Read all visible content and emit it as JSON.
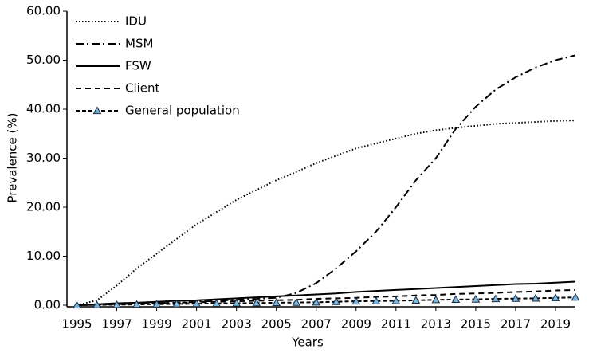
{
  "chart_data": {
    "type": "line",
    "x_label": "Years",
    "y_label": "Prevalence (%)",
    "x": [
      1995,
      1996,
      1997,
      1998,
      1999,
      2000,
      2001,
      2002,
      2003,
      2004,
      2005,
      2006,
      2007,
      2008,
      2009,
      2010,
      2011,
      2012,
      2013,
      2014,
      2015,
      2016,
      2017,
      2018,
      2019,
      2020
    ],
    "series": [
      {
        "name": "IDU",
        "color": "#000000",
        "dash": "1.5 2.5",
        "values": [
          0,
          1,
          4,
          7.5,
          10.5,
          13.5,
          16.5,
          19,
          21.5,
          23.5,
          25.5,
          27.2,
          29,
          30.5,
          32,
          33,
          34,
          35,
          35.7,
          36.2,
          36.6,
          37,
          37.2,
          37.4,
          37.6,
          37.7
        ]
      },
      {
        "name": "MSM",
        "color": "#000000",
        "dash": "10 4 2 4",
        "values": [
          0,
          0.1,
          0.2,
          0.3,
          0.4,
          0.5,
          0.7,
          0.9,
          1.1,
          1.3,
          1.5,
          2.5,
          4.5,
          7.5,
          11,
          15,
          20,
          25.5,
          30,
          36,
          40.5,
          44,
          46.5,
          48.5,
          50,
          51
        ]
      },
      {
        "name": "FSW",
        "color": "#000000",
        "dash": "none",
        "values": [
          0,
          0.2,
          0.4,
          0.5,
          0.7,
          0.9,
          1.0,
          1.2,
          1.4,
          1.6,
          1.8,
          2.0,
          2.2,
          2.4,
          2.7,
          2.9,
          3.1,
          3.3,
          3.5,
          3.7,
          3.9,
          4.1,
          4.3,
          4.4,
          4.6,
          4.8
        ]
      },
      {
        "name": "Client",
        "color": "#000000",
        "dash": "7 5",
        "values": [
          0,
          0.1,
          0.2,
          0.3,
          0.4,
          0.5,
          0.6,
          0.7,
          0.8,
          0.9,
          1.0,
          1.1,
          1.3,
          1.4,
          1.5,
          1.7,
          1.8,
          2.0,
          2.1,
          2.3,
          2.4,
          2.5,
          2.7,
          2.8,
          3.0,
          3.1
        ]
      },
      {
        "name": "General population",
        "color": "#000000",
        "dash": "5 3",
        "marker": "triangle",
        "marker_color": "#7ab8e0",
        "values": [
          0,
          0.05,
          0.1,
          0.15,
          0.2,
          0.25,
          0.3,
          0.35,
          0.4,
          0.45,
          0.5,
          0.55,
          0.6,
          0.7,
          0.8,
          0.85,
          0.9,
          1.0,
          1.1,
          1.15,
          1.2,
          1.3,
          1.35,
          1.4,
          1.5,
          1.6
        ]
      }
    ],
    "xlim": [
      1994.5,
      2020
    ],
    "xticks": [
      1995,
      1997,
      1999,
      2001,
      2003,
      2005,
      2007,
      2009,
      2011,
      2013,
      2015,
      2017,
      2019
    ],
    "ylim": [
      0,
      60
    ],
    "yticks": [
      {
        "value": 0,
        "label": "0.00"
      },
      {
        "value": 10,
        "label": "10.00"
      },
      {
        "value": 20,
        "label": "20.00"
      },
      {
        "value": 30,
        "label": "30.00"
      },
      {
        "value": 40,
        "label": "40.00"
      },
      {
        "value": 50,
        "label": "50.00"
      },
      {
        "value": 60,
        "label": "60.00"
      }
    ],
    "grid": false,
    "legend": "top-left"
  }
}
